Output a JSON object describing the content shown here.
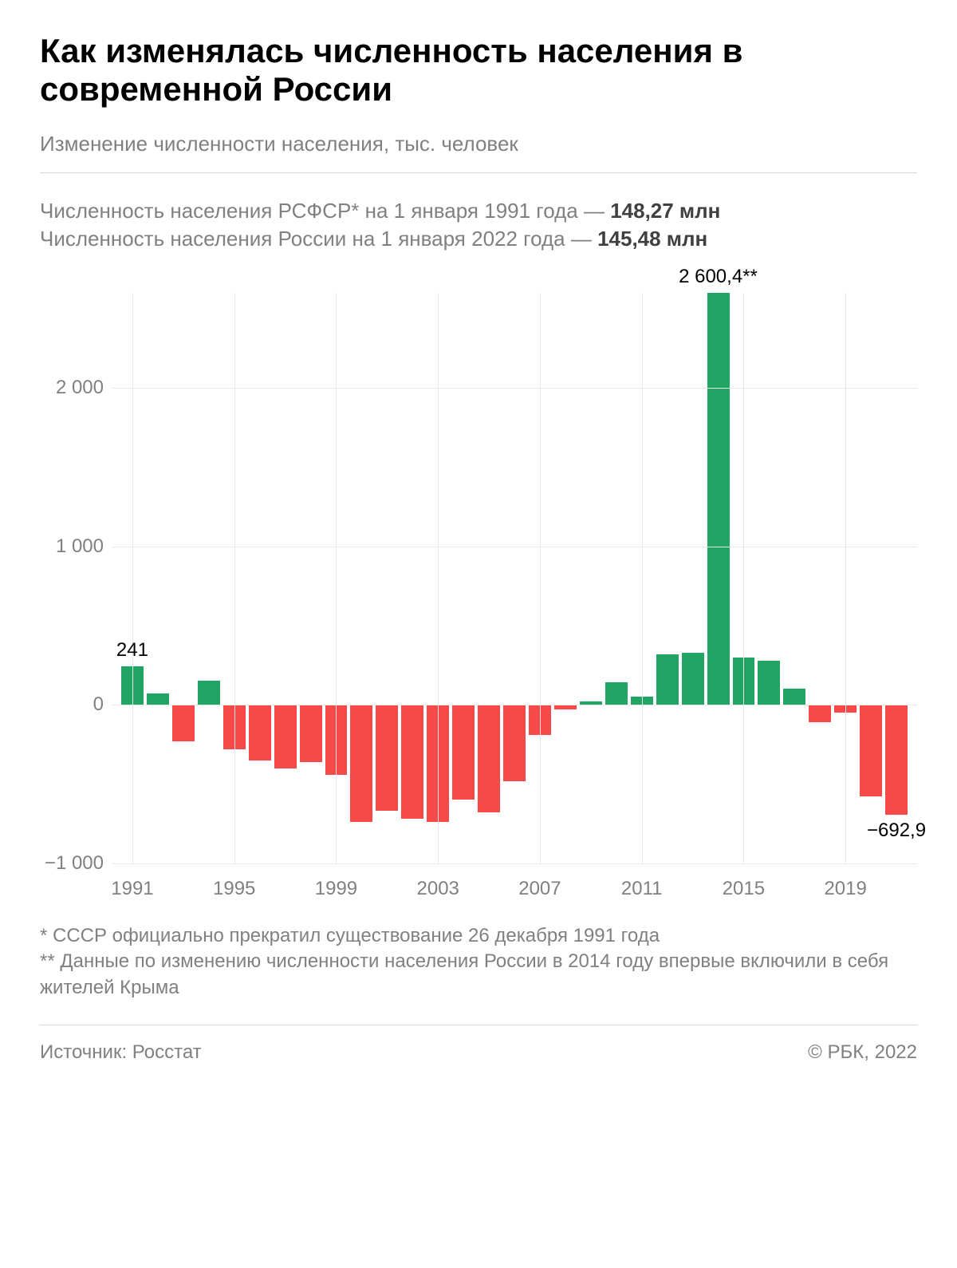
{
  "title": "Как изменялась численность населения в современной России",
  "subtitle": "Изменение численности населения, тыс. человек",
  "info_lines": [
    {
      "text": "Численность населения РСФСР* на 1 января 1991 года — ",
      "value": "148,27 млн"
    },
    {
      "text": "Численность населения России на 1 января 2022 года — ",
      "value": "145,48 млн"
    }
  ],
  "chart": {
    "type": "bar",
    "ylim": [
      -1000,
      2600.4
    ],
    "y_ticks": [
      -1000,
      0,
      1000,
      2000
    ],
    "y_tick_labels": [
      "−1 000",
      "0",
      "1 000",
      "2 000"
    ],
    "grid_color": "#e8e8e8",
    "positive_color": "#21a464",
    "negative_color": "#f84949",
    "label_color": "#808080",
    "label_fontsize": 24,
    "years": [
      1991,
      1992,
      1993,
      1994,
      1995,
      1996,
      1997,
      1998,
      1999,
      2000,
      2001,
      2002,
      2003,
      2004,
      2005,
      2006,
      2007,
      2008,
      2009,
      2010,
      2011,
      2012,
      2013,
      2014,
      2015,
      2016,
      2017,
      2018,
      2019,
      2020,
      2021
    ],
    "values": [
      241,
      70,
      -230,
      150,
      -280,
      -350,
      -400,
      -360,
      -440,
      -740,
      -670,
      -720,
      -740,
      -600,
      -680,
      -480,
      -190,
      -30,
      20,
      140,
      50,
      320,
      330,
      2600.4,
      300,
      280,
      100,
      -110,
      -50,
      -580,
      -692.9
    ],
    "x_tick_years": [
      1991,
      1995,
      1999,
      2003,
      2007,
      2011,
      2015,
      2019
    ],
    "data_labels": [
      {
        "year": 1991,
        "text": "241",
        "placement": "above"
      },
      {
        "year": 2014,
        "text": "2 600,4**",
        "placement": "above"
      },
      {
        "year": 2021,
        "text": "−692,9",
        "placement": "below"
      }
    ]
  },
  "footnotes": [
    "* СССР официально прекратил существование 26 декабря 1991 года",
    "** Данные по изменению численности населения России в 2014 году впервые включили в себя жителей Крыма"
  ],
  "source_label": "Источник: Росстат",
  "copyright": "© РБК, 2022"
}
